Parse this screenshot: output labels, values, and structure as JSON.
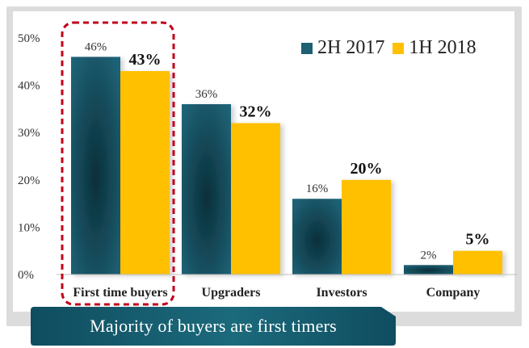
{
  "caption": "Majority of buyers are first timers",
  "colors": {
    "series_2h2017": "#1d5f73",
    "series_1h2018": "#ffc000",
    "highlight_border": "#c0001a",
    "caption_bg": "#145a6c"
  },
  "chart_data": {
    "type": "bar",
    "categories": [
      "First time buyers",
      "Upgraders",
      "Investors",
      "Company"
    ],
    "series": [
      {
        "name": "2H 2017",
        "values": [
          46,
          36,
          16,
          2
        ],
        "labels": [
          "46%",
          "36%",
          "16%",
          "2%"
        ]
      },
      {
        "name": "1H 2018",
        "values": [
          43,
          32,
          20,
          5
        ],
        "labels": [
          "43%",
          "32%",
          "20%",
          "5%"
        ]
      }
    ],
    "yticks": [
      "0%",
      "10%",
      "20%",
      "30%",
      "40%",
      "50%"
    ],
    "ylim": [
      0,
      50
    ],
    "grid": false,
    "legend_position": "top-right",
    "highlighted_category": "First time buyers"
  }
}
